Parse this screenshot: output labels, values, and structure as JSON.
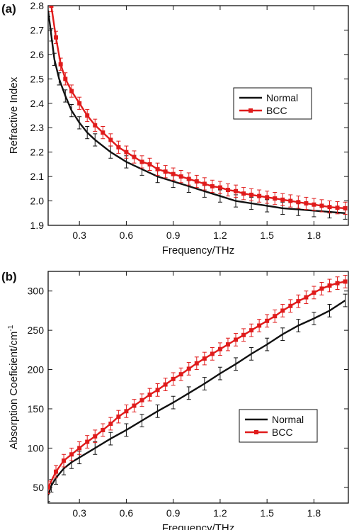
{
  "chart_data": [
    {
      "panel_label": "(a)",
      "type": "line",
      "xlabel": "Frequency/THz",
      "ylabel": "Refractive Index",
      "xlim": [
        0.1,
        2.02
      ],
      "ylim": [
        1.9,
        2.8
      ],
      "xticks": [
        "0.3",
        "0.6",
        "0.9",
        "1.2",
        "1.5",
        "1.8"
      ],
      "yticks": [
        "1.9",
        "2.0",
        "2.1",
        "2.2",
        "2.3",
        "2.4",
        "2.5",
        "2.6",
        "2.7",
        "2.8"
      ],
      "legend_position": "upper-right",
      "series": [
        {
          "name": "Normal",
          "color": "#111111",
          "marker": "none",
          "error": 0.025,
          "x": [
            0.1,
            0.12,
            0.14,
            0.17,
            0.21,
            0.25,
            0.3,
            0.35,
            0.4,
            0.5,
            0.6,
            0.7,
            0.8,
            0.9,
            1.0,
            1.1,
            1.2,
            1.3,
            1.4,
            1.5,
            1.6,
            1.7,
            1.8,
            1.9,
            2.0
          ],
          "y": [
            2.78,
            2.68,
            2.58,
            2.5,
            2.43,
            2.37,
            2.32,
            2.28,
            2.25,
            2.2,
            2.16,
            2.13,
            2.1,
            2.08,
            2.06,
            2.04,
            2.02,
            2.0,
            1.99,
            1.98,
            1.97,
            1.965,
            1.96,
            1.955,
            1.95
          ]
        },
        {
          "name": "BCC",
          "color": "#e01b1b",
          "marker": "square",
          "error": 0.025,
          "x": [
            0.12,
            0.15,
            0.18,
            0.21,
            0.25,
            0.3,
            0.35,
            0.4,
            0.45,
            0.5,
            0.55,
            0.6,
            0.65,
            0.7,
            0.75,
            0.8,
            0.85,
            0.9,
            0.95,
            1.0,
            1.05,
            1.1,
            1.15,
            1.2,
            1.25,
            1.3,
            1.35,
            1.4,
            1.45,
            1.5,
            1.55,
            1.6,
            1.65,
            1.7,
            1.75,
            1.8,
            1.85,
            1.9,
            1.95,
            2.0
          ],
          "y": [
            2.8,
            2.67,
            2.56,
            2.5,
            2.45,
            2.4,
            2.35,
            2.31,
            2.28,
            2.25,
            2.22,
            2.2,
            2.18,
            2.16,
            2.15,
            2.13,
            2.12,
            2.11,
            2.1,
            2.09,
            2.08,
            2.07,
            2.06,
            2.055,
            2.045,
            2.04,
            2.03,
            2.025,
            2.02,
            2.015,
            2.01,
            2.005,
            2.0,
            1.995,
            1.99,
            1.985,
            1.98,
            1.975,
            1.972,
            1.97
          ]
        }
      ]
    },
    {
      "panel_label": "(b)",
      "type": "line",
      "xlabel": "Frequency/THz",
      "ylabel": "Absorption Coeficient/cm",
      "ylabel_superscript": "-1",
      "xlim": [
        0.1,
        2.02
      ],
      "ylim": [
        30,
        325
      ],
      "xticks": [
        "0.3",
        "0.6",
        "0.9",
        "1.2",
        "1.5",
        "1.8"
      ],
      "yticks": [
        "50",
        "100",
        "150",
        "200",
        "250",
        "300"
      ],
      "legend_position": "lower-right",
      "series": [
        {
          "name": "Normal",
          "color": "#111111",
          "marker": "none",
          "error": 8,
          "x": [
            0.1,
            0.12,
            0.15,
            0.2,
            0.25,
            0.3,
            0.4,
            0.5,
            0.6,
            0.7,
            0.8,
            0.9,
            1.0,
            1.1,
            1.2,
            1.3,
            1.4,
            1.5,
            1.6,
            1.7,
            1.8,
            1.9,
            2.0
          ],
          "y": [
            40,
            52,
            62,
            74,
            82,
            88,
            100,
            112,
            123,
            135,
            147,
            158,
            170,
            182,
            195,
            207,
            220,
            232,
            245,
            256,
            265,
            275,
            288
          ]
        },
        {
          "name": "BCC",
          "color": "#e01b1b",
          "marker": "square",
          "error": 8,
          "x": [
            0.1,
            0.15,
            0.2,
            0.25,
            0.3,
            0.35,
            0.4,
            0.45,
            0.5,
            0.55,
            0.6,
            0.65,
            0.7,
            0.75,
            0.8,
            0.85,
            0.9,
            0.95,
            1.0,
            1.05,
            1.1,
            1.15,
            1.2,
            1.25,
            1.3,
            1.35,
            1.4,
            1.45,
            1.5,
            1.55,
            1.6,
            1.65,
            1.7,
            1.75,
            1.8,
            1.85,
            1.9,
            1.95,
            2.0
          ],
          "y": [
            50,
            70,
            84,
            92,
            100,
            108,
            115,
            123,
            131,
            140,
            147,
            154,
            161,
            168,
            174,
            181,
            188,
            194,
            201,
            208,
            214,
            220,
            226,
            232,
            238,
            244,
            250,
            256,
            262,
            268,
            275,
            281,
            287,
            292,
            298,
            303,
            307,
            310,
            312
          ]
        }
      ]
    }
  ]
}
